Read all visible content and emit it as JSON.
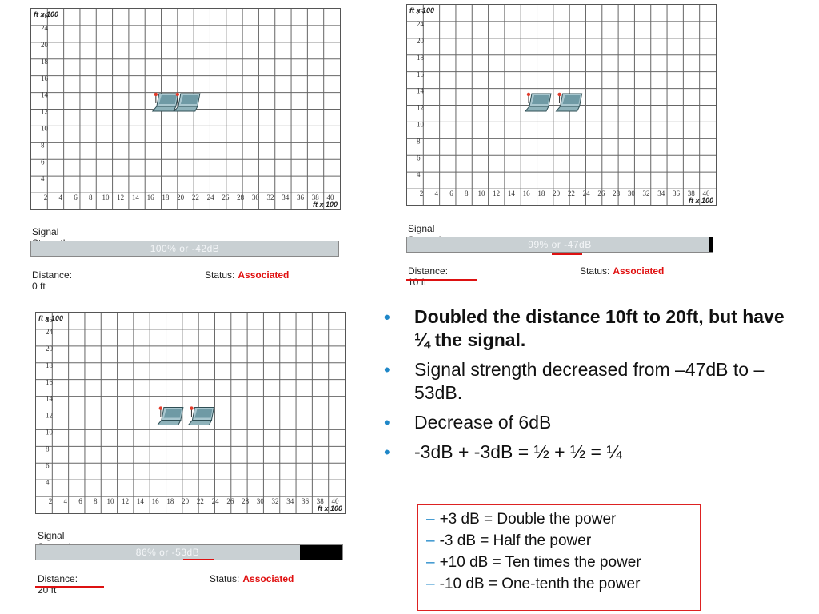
{
  "panels": [
    {
      "id": "p1",
      "y_axis_title": "ft x 100",
      "x_axis_title": "ft x 100",
      "y_ticks": [
        "26",
        "24",
        "20",
        "18",
        "16",
        "14",
        "12",
        "10",
        "8",
        "6",
        "4"
      ],
      "x_ticks": [
        "2",
        "4",
        "6",
        "8",
        "10",
        "12",
        "14",
        "16",
        "18",
        "20",
        "22",
        "24",
        "26",
        "28",
        "30",
        "32",
        "34",
        "36",
        "38",
        "40"
      ],
      "signal_label": "Signal Strength",
      "signal_percent": "100%",
      "signal_or": "or",
      "signal_db": "-42dB",
      "signal_level": 1.0,
      "distance_label": "Distance:",
      "distance_value": "0 ft",
      "status_label": "Status:",
      "status_value": "Associated"
    },
    {
      "id": "p2",
      "y_axis_title": "ft x 100",
      "x_axis_title": "ft x 100",
      "y_ticks": [
        "26",
        "24",
        "20",
        "18",
        "16",
        "14",
        "12",
        "10",
        "8",
        "6",
        "4"
      ],
      "x_ticks": [
        "2",
        "4",
        "6",
        "8",
        "10",
        "12",
        "14",
        "16",
        "18",
        "20",
        "22",
        "24",
        "26",
        "28",
        "30",
        "32",
        "34",
        "36",
        "38",
        "40"
      ],
      "signal_label": "Signal Strength",
      "signal_percent": "99%",
      "signal_or": "or",
      "signal_db": "-47dB",
      "signal_level": 0.99,
      "distance_label": "Distance:",
      "distance_value": "10 ft",
      "status_label": "Status:",
      "status_value": "Associated"
    },
    {
      "id": "p3",
      "y_axis_title": "ft x 100",
      "x_axis_title": "ft x 100",
      "y_ticks": [
        "26",
        "24",
        "20",
        "18",
        "16",
        "14",
        "12",
        "10",
        "8",
        "6",
        "4"
      ],
      "x_ticks": [
        "2",
        "4",
        "6",
        "8",
        "10",
        "12",
        "14",
        "16",
        "18",
        "20",
        "22",
        "24",
        "26",
        "28",
        "30",
        "32",
        "34",
        "36",
        "38",
        "40"
      ],
      "signal_label": "Signal Strength",
      "signal_percent": "86%",
      "signal_or": "or",
      "signal_db": "-53dB",
      "signal_level": 0.86,
      "distance_label": "Distance:",
      "distance_value": "20 ft",
      "status_label": "Status:",
      "status_value": "Associated"
    }
  ],
  "bullets": [
    {
      "text": "Doubled the distance 10ft to 20ft, but have ¼ the signal.",
      "bold": true
    },
    {
      "text": "Signal strength decreased from –47dB to –53dB.",
      "bold": false
    },
    {
      "text": "Decrease of 6dB",
      "bold": false
    },
    {
      "text": "-3dB + -3dB =  ½ + ½ = ¼",
      "bold": false
    }
  ],
  "rules": [
    "+3 dB = Double the power",
    "-3 dB = Half the power",
    "+10 dB = Ten times the power",
    "-10 dB = One-tenth the power"
  ],
  "colors": {
    "status_red": "#e01010",
    "bullet_blue": "#1f87c8",
    "bar_gray": "#c9d0d3",
    "box_red": "#d22222"
  },
  "icons": {
    "bullet": "bullet-dot-icon",
    "laptop": "laptop-icon"
  }
}
